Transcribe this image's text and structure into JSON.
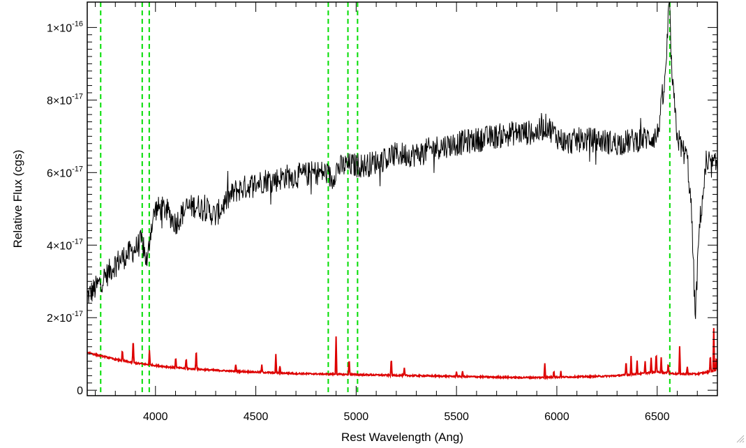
{
  "chart_data": {
    "type": "line",
    "title": "",
    "xlabel": "Rest Wavelength (Ang)",
    "ylabel": "Relative Flux (cgs)",
    "xlim": [
      3660,
      6800
    ],
    "ylim": [
      -1.5e-18,
      1.07e-16
    ],
    "grid": false,
    "x_ticks": [
      {
        "value": 4000,
        "label": "4000"
      },
      {
        "value": 4500,
        "label": "4500"
      },
      {
        "value": 5000,
        "label": "5000"
      },
      {
        "value": 5500,
        "label": "5500"
      },
      {
        "value": 6000,
        "label": "6000"
      },
      {
        "value": 6500,
        "label": "6500"
      }
    ],
    "y_ticks": [
      {
        "value": 0,
        "mantissa": "0",
        "exponent": ""
      },
      {
        "value": 2e-17,
        "mantissa": "2×10",
        "exponent": "-17"
      },
      {
        "value": 4e-17,
        "mantissa": "4×10",
        "exponent": "-17"
      },
      {
        "value": 6e-17,
        "mantissa": "6×10",
        "exponent": "-17"
      },
      {
        "value": 8e-17,
        "mantissa": "8×10",
        "exponent": "-17"
      },
      {
        "value": 1e-16,
        "mantissa": "1×10",
        "exponent": "-16"
      }
    ],
    "vertical_lines": {
      "color": "#00dd00",
      "style": "dashed",
      "x": [
        3727,
        3934,
        3969,
        4861,
        4959,
        5007,
        6563
      ]
    },
    "series": [
      {
        "color": "#000000",
        "noise": 3.5e-18,
        "x": [
          3660,
          3700,
          3727,
          3760,
          3800,
          3850,
          3900,
          3930,
          3960,
          3975,
          4000,
          4050,
          4100,
          4150,
          4200,
          4250,
          4300,
          4350,
          4400,
          4450,
          4500,
          4550,
          4600,
          4650,
          4700,
          4750,
          4800,
          4850,
          4880,
          4900,
          4950,
          5000,
          5050,
          5100,
          5150,
          5200,
          5300,
          5400,
          5500,
          5600,
          5700,
          5800,
          5900,
          5950,
          6000,
          6050,
          6100,
          6200,
          6300,
          6400,
          6500,
          6540,
          6560,
          6575,
          6600,
          6620,
          6650,
          6670,
          6690,
          6710,
          6740,
          6770,
          6800
        ],
        "y": [
          2.6e-17,
          2.8e-17,
          3e-17,
          3.2e-17,
          3.5e-17,
          3.7e-17,
          3.9e-17,
          4.1e-17,
          3.5e-17,
          4.4e-17,
          5e-17,
          5e-17,
          4.6e-17,
          5e-17,
          5.1e-17,
          5e-17,
          4.8e-17,
          5.2e-17,
          5.5e-17,
          5.6e-17,
          5.7e-17,
          5.8e-17,
          5.8e-17,
          5.9e-17,
          5.9e-17,
          5.95e-17,
          6e-17,
          6e-17,
          5.8e-17,
          6.1e-17,
          6.2e-17,
          6.2e-17,
          6.2e-17,
          6.3e-17,
          6.4e-17,
          6.5e-17,
          6.5e-17,
          6.7e-17,
          6.8e-17,
          6.9e-17,
          7e-17,
          7.1e-17,
          7.1e-17,
          7.3e-17,
          7e-17,
          6.8e-17,
          6.9e-17,
          6.9e-17,
          6.8e-17,
          6.9e-17,
          7e-17,
          8.5e-17,
          1.07e-16,
          8.5e-17,
          7e-17,
          6.7e-17,
          6.4e-17,
          5e-17,
          2e-17,
          4.5e-17,
          6e-17,
          6.2e-17,
          6.2e-17
        ]
      },
      {
        "color": "#dd0000",
        "x": [
          3660,
          3700,
          3750,
          3800,
          3900,
          4000,
          4100,
          4200,
          4300,
          4400,
          4500,
          4600,
          4700,
          4800,
          4900,
          5000,
          5100,
          5200,
          5300,
          5400,
          5500,
          5600,
          5700,
          5800,
          5900,
          6000,
          6100,
          6200,
          6300,
          6400,
          6500,
          6600,
          6700,
          6750,
          6800
        ],
        "y": [
          1.05e-17,
          9.8e-18,
          9.2e-18,
          8.5e-18,
          7.5e-18,
          6.8e-18,
          6.2e-18,
          5.8e-18,
          5.5e-18,
          5.2e-18,
          5e-18,
          4.8e-18,
          4.6e-18,
          4.5e-18,
          4.4e-18,
          4.3e-18,
          4.2e-18,
          4.1e-18,
          4e-18,
          3.9e-18,
          3.8e-18,
          3.7e-18,
          3.6e-18,
          3.5e-18,
          3.5e-18,
          3.6e-18,
          3.7e-18,
          3.8e-18,
          4e-18,
          4.5e-18,
          5e-18,
          4.5e-18,
          4.5e-18,
          5e-18,
          5.5e-18
        ],
        "spikes": [
          {
            "x": 3835,
            "h": 3e-18
          },
          {
            "x": 3889,
            "h": 7e-18
          },
          {
            "x": 3970,
            "h": 4e-18
          },
          {
            "x": 4101,
            "h": 3e-18
          },
          {
            "x": 4153,
            "h": 3e-18
          },
          {
            "x": 4203,
            "h": 6e-18
          },
          {
            "x": 4400,
            "h": 2e-18
          },
          {
            "x": 4530,
            "h": 2e-18
          },
          {
            "x": 4600,
            "h": 5e-18
          },
          {
            "x": 4620,
            "h": 2e-18
          },
          {
            "x": 4900,
            "h": 1.05e-17
          },
          {
            "x": 4965,
            "h": 4.5e-18
          },
          {
            "x": 5175,
            "h": 5e-18
          },
          {
            "x": 5240,
            "h": 2e-18
          },
          {
            "x": 5500,
            "h": 1.5e-18
          },
          {
            "x": 5530,
            "h": 1.5e-18
          },
          {
            "x": 5940,
            "h": 4e-18
          },
          {
            "x": 5985,
            "h": 2e-18
          },
          {
            "x": 6020,
            "h": 1.5e-18
          },
          {
            "x": 6345,
            "h": 4e-18
          },
          {
            "x": 6370,
            "h": 5e-18
          },
          {
            "x": 6400,
            "h": 3.5e-18
          },
          {
            "x": 6440,
            "h": 3.5e-18
          },
          {
            "x": 6470,
            "h": 4e-18
          },
          {
            "x": 6495,
            "h": 6e-18
          },
          {
            "x": 6520,
            "h": 4e-18
          },
          {
            "x": 6555,
            "h": 3e-18
          },
          {
            "x": 6612,
            "h": 7.5e-18
          },
          {
            "x": 6650,
            "h": 2e-18
          },
          {
            "x": 6765,
            "h": 5e-18
          },
          {
            "x": 6782,
            "h": 1.2e-17
          },
          {
            "x": 6795,
            "h": 4e-18
          }
        ]
      }
    ]
  }
}
